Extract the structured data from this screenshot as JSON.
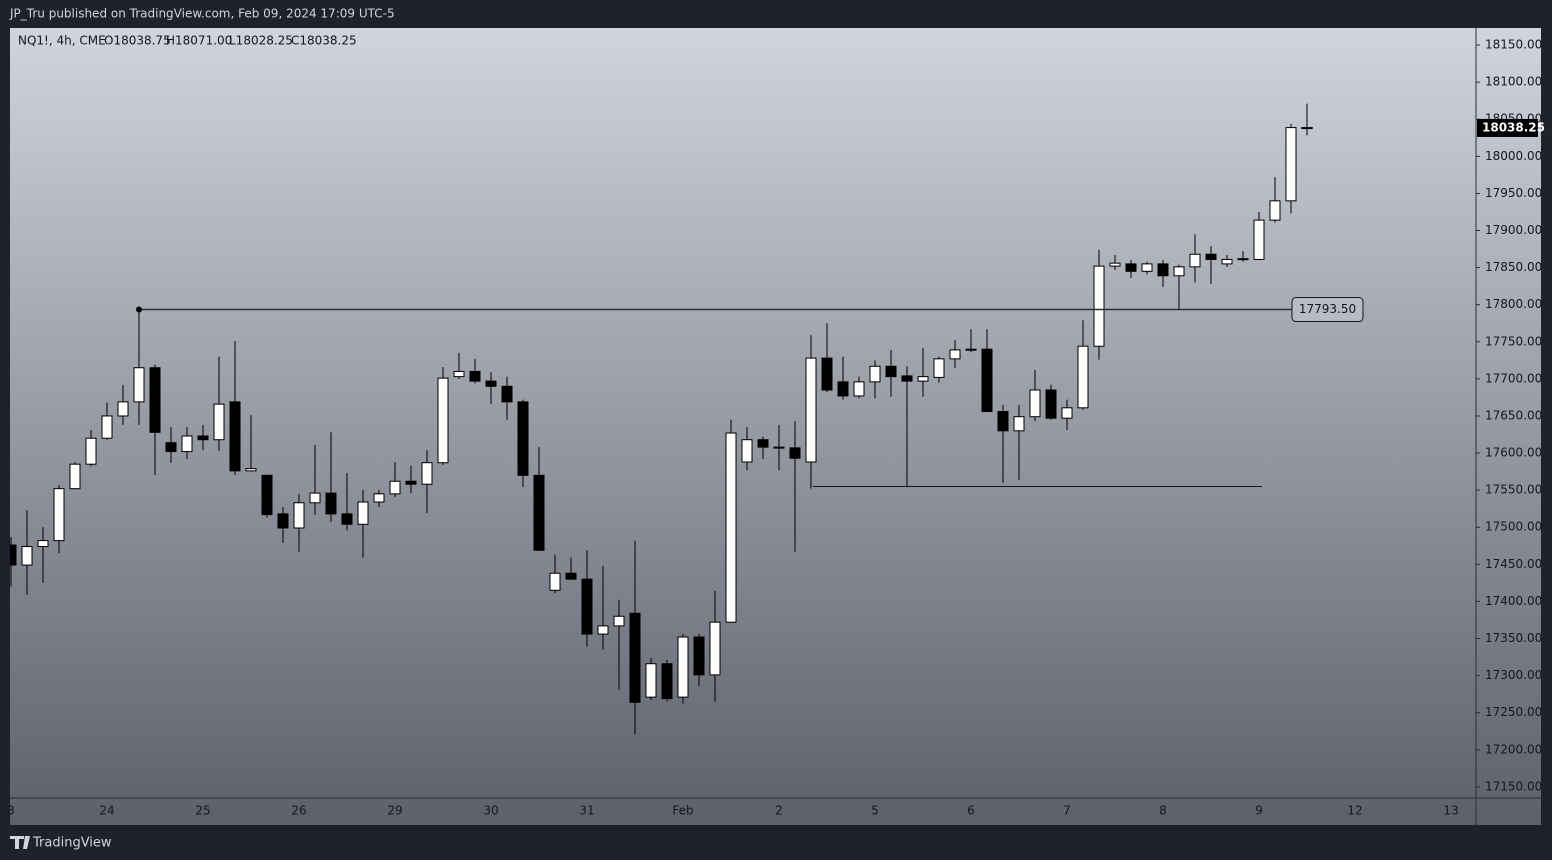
{
  "chart_data": {
    "type": "candlestick",
    "header": "JP_Tru published on TradingView.com, Feb 09, 2024 17:09 UTC-5",
    "symbol": "NQ1!, 4h, CME",
    "ohlc_legend": [
      "O18038.75",
      "H18071.00",
      "L18028.25",
      "C18038.25"
    ],
    "last_price_label": "18038.25",
    "brand": "TradingView",
    "categories": [
      "3",
      null,
      null,
      null,
      null,
      null,
      "24",
      null,
      null,
      null,
      null,
      null,
      "25",
      null,
      null,
      null,
      null,
      null,
      "26",
      null,
      null,
      null,
      null,
      null,
      "29",
      null,
      null,
      null,
      null,
      null,
      "30",
      null,
      null,
      null,
      null,
      null,
      "31",
      null,
      null,
      null,
      null,
      null,
      "Feb",
      null,
      null,
      null,
      null,
      null,
      "2",
      null,
      null,
      null,
      null,
      null,
      "5",
      null,
      null,
      null,
      null,
      null,
      "6",
      null,
      null,
      null,
      null,
      null,
      "7",
      null,
      null,
      null,
      null,
      null,
      "8",
      null,
      null,
      null,
      null,
      null,
      "9",
      null,
      null,
      null,
      null,
      null,
      "12",
      null,
      null,
      null,
      null,
      null,
      "13"
    ],
    "open": [
      17476,
      17449,
      17474,
      17482,
      17552,
      17585,
      17620,
      17650,
      17669,
      17715,
      17614,
      17602,
      17623,
      17618,
      17669,
      17576,
      17570,
      17518,
      17499,
      17533,
      17546,
      17518,
      17504,
      17534,
      17545,
      17562,
      17558,
      17587,
      17703,
      17710,
      17697,
      17690,
      17669,
      17570,
      17415,
      17438,
      17430,
      17356,
      17367,
      17384,
      17271,
      17316,
      17271,
      17352,
      17301,
      17372,
      17588,
      17618,
      17608,
      17607,
      17588,
      17728,
      17696,
      17677,
      17696,
      17717,
      17704,
      17697,
      17702,
      17727,
      17739,
      17740,
      17656,
      17630,
      17649,
      17685,
      17647,
      17661,
      17744,
      17852,
      17855,
      17845,
      17855,
      17839,
      17851,
      17868,
      17855,
      17861,
      17861,
      17914,
      17940,
      18038.75,
      null,
      null,
      null,
      null,
      null,
      null,
      null,
      null,
      null
    ],
    "high": [
      17487,
      17523,
      17500,
      17557,
      17588,
      17631,
      17668,
      17692,
      17793.5,
      17719,
      17635,
      17635,
      17638,
      17730,
      17751,
      17651,
      17570,
      17527,
      17545,
      17611,
      17628,
      17573,
      17550,
      17550,
      17588,
      17583,
      17604,
      17716,
      17735,
      17727,
      17709,
      17703,
      17672,
      17608,
      17463,
      17459,
      17469,
      17448,
      17402,
      17482,
      17324,
      17321,
      17356,
      17356,
      17414,
      17645,
      17635,
      17622,
      17638,
      17643,
      17759,
      17775,
      17730,
      17703,
      17725,
      17739,
      17717,
      17742,
      17730,
      17752,
      17767,
      17767,
      17665,
      17665,
      17712,
      17692,
      17672,
      17779,
      17874,
      17867,
      17860,
      17858,
      17860,
      17854,
      17895,
      17879,
      17867,
      17872,
      17925,
      17972,
      18044,
      18071,
      null,
      null,
      null,
      null,
      null,
      null,
      null,
      null,
      null
    ],
    "low": [
      17420,
      17409,
      17425,
      17465,
      17551,
      17582,
      17618,
      17638,
      17638,
      17570,
      17587,
      17592,
      17604,
      17603,
      17570,
      17575,
      17513,
      17479,
      17467,
      17517,
      17507,
      17496,
      17459,
      17527,
      17541,
      17546,
      17519,
      17584,
      17700,
      17694,
      17666,
      17645,
      17554,
      17468,
      17411,
      17429,
      17339,
      17335,
      17281,
      17221,
      17267,
      17265,
      17262,
      17286,
      17265,
      17372,
      17577,
      17592,
      17577,
      17467,
      17552,
      17682,
      17672,
      17674,
      17674,
      17676,
      17554,
      17676,
      17695,
      17715,
      17736,
      17656,
      17560,
      17564,
      17643,
      17645,
      17631,
      17658,
      17726,
      17847,
      17836,
      17841,
      17824,
      17793,
      17830,
      17828,
      17851,
      17858,
      17860,
      17911,
      17923,
      18028.25,
      null,
      null,
      null,
      null,
      null,
      null,
      null,
      null,
      null
    ],
    "close": [
      17449,
      17474,
      17482,
      17552,
      17585,
      17620,
      17650,
      17669,
      17715,
      17628,
      17602,
      17623,
      17618,
      17666,
      17576,
      17579,
      17517,
      17499,
      17533,
      17546,
      17518,
      17504,
      17534,
      17545,
      17562,
      17558,
      17587,
      17701,
      17710,
      17697,
      17690,
      17669,
      17570,
      17469,
      17438,
      17430,
      17356,
      17367,
      17380,
      17264,
      17316,
      17269,
      17352,
      17301,
      17372,
      17627,
      17618,
      17608,
      17607,
      17593,
      17728,
      17685,
      17677,
      17696,
      17717,
      17703,
      17697,
      17703,
      17727,
      17739,
      17740,
      17656,
      17630,
      17649,
      17685,
      17647,
      17661,
      17744,
      17852,
      17856,
      17845,
      17855,
      17839,
      17851,
      17868,
      17861,
      17861,
      17862,
      17914,
      17940,
      18038.75,
      18038.25,
      null,
      null,
      null,
      null,
      null,
      null,
      null,
      null,
      null
    ],
    "color_up": "#ffffff",
    "color_down": "#000000",
    "levels": [
      {
        "value": 17793.5,
        "label": "17793.50"
      },
      {
        "value": 17555
      }
    ],
    "ylim": [
      17135,
      18173
    ],
    "yticks": [
      {
        "value": 17150,
        "label": "17150.00"
      },
      {
        "value": 17200,
        "label": "17200.00"
      },
      {
        "value": 17250,
        "label": "17250.00"
      },
      {
        "value": 17300,
        "label": "17300.00"
      },
      {
        "value": 17350,
        "label": "17350.00"
      },
      {
        "value": 17400,
        "label": "17400.00"
      },
      {
        "value": 17450,
        "label": "17450.00"
      },
      {
        "value": 17500,
        "label": "17500.00"
      },
      {
        "value": 17550,
        "label": "17550.00"
      },
      {
        "value": 17600,
        "label": "17600.00"
      },
      {
        "value": 17650,
        "label": "17650.00"
      },
      {
        "value": 17700,
        "label": "17700.00"
      },
      {
        "value": 17750,
        "label": "17750.00"
      },
      {
        "value": 17800,
        "label": "17800.00"
      },
      {
        "value": 17850,
        "label": "17850.00"
      },
      {
        "value": 17900,
        "label": "17900.00"
      },
      {
        "value": 17950,
        "label": "17950.00"
      },
      {
        "value": 18000,
        "label": "18000.00"
      },
      {
        "value": 18050,
        "label": "18050.00"
      },
      {
        "value": 18100,
        "label": "18100.00"
      },
      {
        "value": 18150,
        "label": "18150.00"
      }
    ]
  }
}
